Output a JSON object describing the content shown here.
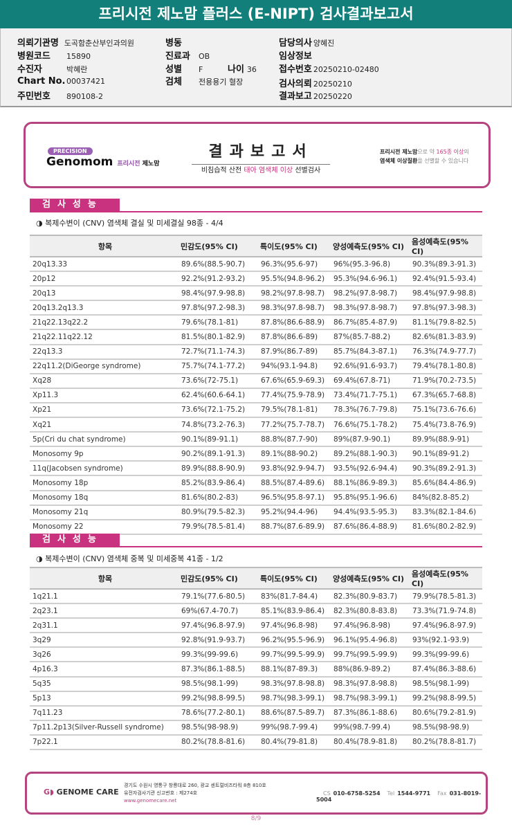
{
  "header": {
    "title": "프리시전 제노맘 플러스 (E-NIPT) 검사결과보고서"
  },
  "info": {
    "institution": {
      "label": "의뢰기관명",
      "value": "도곡함춘산부인과의원"
    },
    "hospital_code": {
      "label": "병원코드",
      "value": "15890"
    },
    "patient": {
      "label": "수진자",
      "value": "박혜란"
    },
    "chart_no": {
      "label": "Chart No.",
      "value": "00037421"
    },
    "resident_no": {
      "label": "주민번호",
      "value": "890108-2"
    },
    "ward": {
      "label": "병동",
      "value": ""
    },
    "department": {
      "label": "진료과",
      "value": "OB"
    },
    "sex": {
      "label": "성별",
      "value": "F"
    },
    "age": {
      "label": "나이",
      "value": "36"
    },
    "specimen": {
      "label": "검체",
      "value": "전용용기 혈장"
    },
    "doctor": {
      "label": "담당의사",
      "value": "양혜진"
    },
    "clinical": {
      "label": "임상정보",
      "value": ""
    },
    "receipt_no": {
      "label": "접수번호",
      "value": "20250210-02480"
    },
    "request_date": {
      "label": "검사의뢰",
      "value": "20250210"
    },
    "report_date": {
      "label": "결과보고",
      "value": "20250220"
    }
  },
  "banner": {
    "precision": "PRECISION",
    "brand": "Genomom",
    "brand_kr1": "프리시전",
    "brand_kr2": "제노맘",
    "title": "결과보고서",
    "sub_a": "비침습적 산전",
    "sub_b": "태아 염색체 이상",
    "sub_c": "선별검사",
    "right_1a": "프리시전 제노맘",
    "right_1b": "으로 약",
    "right_1c": "165종 이상",
    "right_1d": "의",
    "right_2a": "염색체 이상질환",
    "right_2b": "을 선별할 수 있습니다"
  },
  "columns": [
    "항목",
    "민감도(95% CI)",
    "특이도(95% CI)",
    "양성예측도(95% CI)",
    "음성예측도(95% CI)"
  ],
  "sections": [
    {
      "label": "검사성능",
      "subtitle": "◑ 복제수변이 (CNV) 염색체 결실 및 미세결실 98종 - 4/4",
      "rows": [
        [
          "20q13.33",
          "89.6%(88.5-90.7)",
          "96.3%(95.6-97)",
          "96%(95.3-96.8)",
          "90.3%(89.3-91.3)"
        ],
        [
          "20p12",
          "92.2%(91.2-93.2)",
          "95.5%(94.8-96.2)",
          "95.3%(94.6-96.1)",
          "92.4%(91.5-93.4)"
        ],
        [
          "20q13",
          "98.4%(97.9-98.8)",
          "98.2%(97.8-98.7)",
          "98.2%(97.8-98.7)",
          "98.4%(97.9-98.8)"
        ],
        [
          "20q13.2q13.3",
          "97.8%(97.2-98.3)",
          "98.3%(97.8-98.7)",
          "98.3%(97.8-98.7)",
          "97.8%(97.3-98.3)"
        ],
        [
          "21q22.13q22.2",
          "79.6%(78.1-81)",
          "87.8%(86.6-88.9)",
          "86.7%(85.4-87.9)",
          "81.1%(79.8-82.5)"
        ],
        [
          "21q22.11q22.12",
          "81.5%(80.1-82.9)",
          "87.8%(86.6-89)",
          "87%(85.7-88.2)",
          "82.6%(81.3-83.9)"
        ],
        [
          "22q13.3",
          "72.7%(71.1-74.3)",
          "87.9%(86.7-89)",
          "85.7%(84.3-87.1)",
          "76.3%(74.9-77.7)"
        ],
        [
          "22q11.2(DiGeorge syndrome)",
          "75.7%(74.1-77.2)",
          "94%(93.1-94.8)",
          "92.6%(91.6-93.7)",
          "79.4%(78.1-80.8)"
        ],
        [
          "Xq28",
          "73.6%(72-75.1)",
          "67.6%(65.9-69.3)",
          "69.4%(67.8-71)",
          "71.9%(70.2-73.5)"
        ],
        [
          "Xp11.3",
          "62.4%(60.6-64.1)",
          "77.4%(75.9-78.9)",
          "73.4%(71.7-75.1)",
          "67.3%(65.7-68.8)"
        ],
        [
          "Xp21",
          "73.6%(72.1-75.2)",
          "79.5%(78.1-81)",
          "78.3%(76.7-79.8)",
          "75.1%(73.6-76.6)"
        ],
        [
          "Xq21",
          "74.8%(73.2-76.3)",
          "77.2%(75.7-78.7)",
          "76.6%(75.1-78.2)",
          "75.4%(73.8-76.9)"
        ],
        [
          "5p(Cri du chat syndrome)",
          "90.1%(89-91.1)",
          "88.8%(87.7-90)",
          "89%(87.9-90.1)",
          "89.9%(88.9-91)"
        ],
        [
          "Monosomy 9p",
          "90.2%(89.1-91.3)",
          "89.1%(88-90.2)",
          "89.2%(88.1-90.3)",
          "90.1%(89-91.2)"
        ],
        [
          "11q(Jacobsen syndrome)",
          "89.9%(88.8-90.9)",
          "93.8%(92.9-94.7)",
          "93.5%(92.6-94.4)",
          "90.3%(89.2-91.3)"
        ],
        [
          "Monosomy 18p",
          "85.2%(83.9-86.4)",
          "88.5%(87.4-89.6)",
          "88.1%(86.9-89.3)",
          "85.6%(84.4-86.9)"
        ],
        [
          "Monosomy 18q",
          "81.6%(80.2-83)",
          "96.5%(95.8-97.1)",
          "95.8%(95.1-96.6)",
          "84%(82.8-85.2)"
        ],
        [
          "Monosomy 21q",
          "80.9%(79.5-82.3)",
          "95.2%(94.4-96)",
          "94.4%(93.5-95.3)",
          "83.3%(82.1-84.6)"
        ],
        [
          "Monosomy 22",
          "79.9%(78.5-81.4)",
          "88.7%(87.6-89.9)",
          "87.6%(86.4-88.9)",
          "81.6%(80.2-82.9)"
        ]
      ]
    },
    {
      "label": "검사성능",
      "subtitle": "◑ 복제수변이 (CNV) 염색체 중복 및 미세중복 41종 - 1/2",
      "rows": [
        [
          "1q21.1",
          "79.1%(77.6-80.5)",
          "83%(81.7-84.4)",
          "82.3%(80.9-83.7)",
          "79.9%(78.5-81.3)"
        ],
        [
          "2q23.1",
          "69%(67.4-70.7)",
          "85.1%(83.9-86.4)",
          "82.3%(80.8-83.8)",
          "73.3%(71.9-74.8)"
        ],
        [
          "2q31.1",
          "97.4%(96.8-97.9)",
          "97.4%(96.8-98)",
          "97.4%(96.8-98)",
          "97.4%(96.8-97.9)"
        ],
        [
          "3q29",
          "92.8%(91.9-93.7)",
          "96.2%(95.5-96.9)",
          "96.1%(95.4-96.8)",
          "93%(92.1-93.9)"
        ],
        [
          "3q26",
          "99.3%(99-99.6)",
          "99.7%(99.5-99.9)",
          "99.7%(99.5-99.9)",
          "99.3%(99-99.6)"
        ],
        [
          "4p16.3",
          "87.3%(86.1-88.5)",
          "88.1%(87-89.3)",
          "88%(86.9-89.2)",
          "87.4%(86.3-88.6)"
        ],
        [
          "5q35",
          "98.5%(98.1-99)",
          "98.3%(97.8-98.8)",
          "98.3%(97.8-98.8)",
          "98.5%(98.1-99)"
        ],
        [
          "5p13",
          "99.2%(98.8-99.5)",
          "98.7%(98.3-99.1)",
          "98.7%(98.3-99.1)",
          "99.2%(98.8-99.5)"
        ],
        [
          "7q11.23",
          "78.6%(77.2-80.1)",
          "88.6%(87.5-89.7)",
          "87.3%(86.1-88.6)",
          "80.6%(79.2-81.9)"
        ],
        [
          "7p11.2p13(Silver-Russell syndrome)",
          "98.5%(98-98.9)",
          "99%(98.7-99.4)",
          "99%(98.7-99.4)",
          "98.5%(98-98.9)"
        ],
        [
          "7p22.1",
          "80.2%(78.8-81.6)",
          "80.4%(79-81.8)",
          "80.4%(78.9-81.8)",
          "80.2%(78.8-81.7)"
        ]
      ]
    }
  ],
  "footer": {
    "logo": "GENOME CARE",
    "address": "경기도 수원시 영통구 창룡대로 260, 광교 센트럴비즈타워 8층 810호",
    "license": "유전자검사기관 신고번호 : 제274호",
    "url": "www.genomecare.net",
    "cs_label": "CS",
    "cs": "010-6758-5254",
    "tel_label": "Tel",
    "tel": "1544-9771",
    "fax_label": "Fax",
    "fax": "031-8019-5004"
  },
  "page": "8/9",
  "colors": {
    "header": "#127f7a",
    "accent": "#c8327f",
    "border": "#b4437f"
  }
}
